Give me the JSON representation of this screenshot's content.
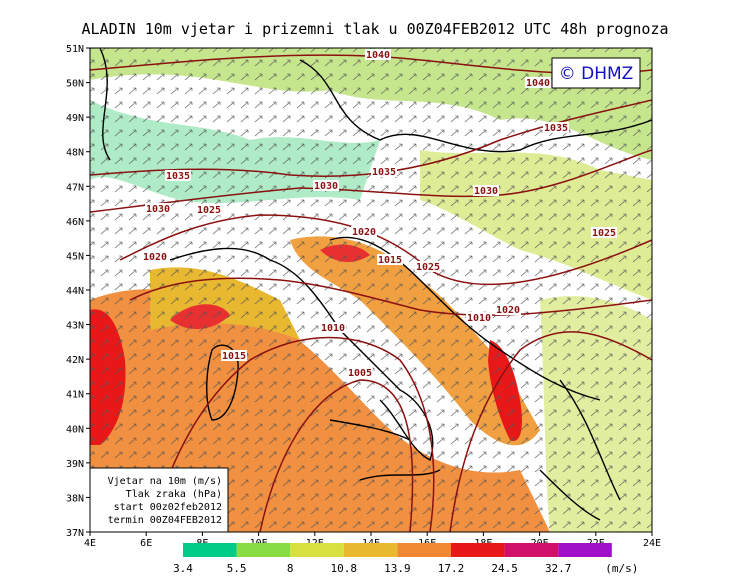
{
  "title": "ALADIN 10m vjetar i prizemni tlak u 00Z04FEB2012 UTC 48h prognoza",
  "badge": "© DHMZ",
  "lat_labels": [
    "51N",
    "50N",
    "49N",
    "48N",
    "47N",
    "46N",
    "45N",
    "44N",
    "43N",
    "42N",
    "41N",
    "40N",
    "39N",
    "38N",
    "37N"
  ],
  "lon_labels": [
    "4E",
    "6E",
    "8E",
    "10E",
    "12E",
    "14E",
    "16E",
    "18E",
    "20E",
    "22E",
    "24E"
  ],
  "isobar_labels": [
    "1040",
    "1040",
    "1035",
    "1035",
    "1035",
    "1030",
    "1030",
    "1030",
    "1025",
    "1025",
    "1020",
    "1015",
    "1025",
    "1020",
    "1020",
    "1010",
    "1010",
    "1015",
    "1005"
  ],
  "info_box": [
    "Vjetar na 10m (m/s)",
    "Tlak zraka (hPa)",
    "start 00z02feb2012",
    "termin 00Z04FEB2012"
  ],
  "colorbar": {
    "levels": [
      3.4,
      5.5,
      8,
      10.8,
      13.9,
      17.2,
      24.5,
      32.7
    ],
    "colors": [
      "#00cc88",
      "#88dd44",
      "#d8e040",
      "#e8b830",
      "#f08834",
      "#e81818",
      "#d0106a",
      "#a010c8"
    ],
    "unit": "(m/s)"
  }
}
